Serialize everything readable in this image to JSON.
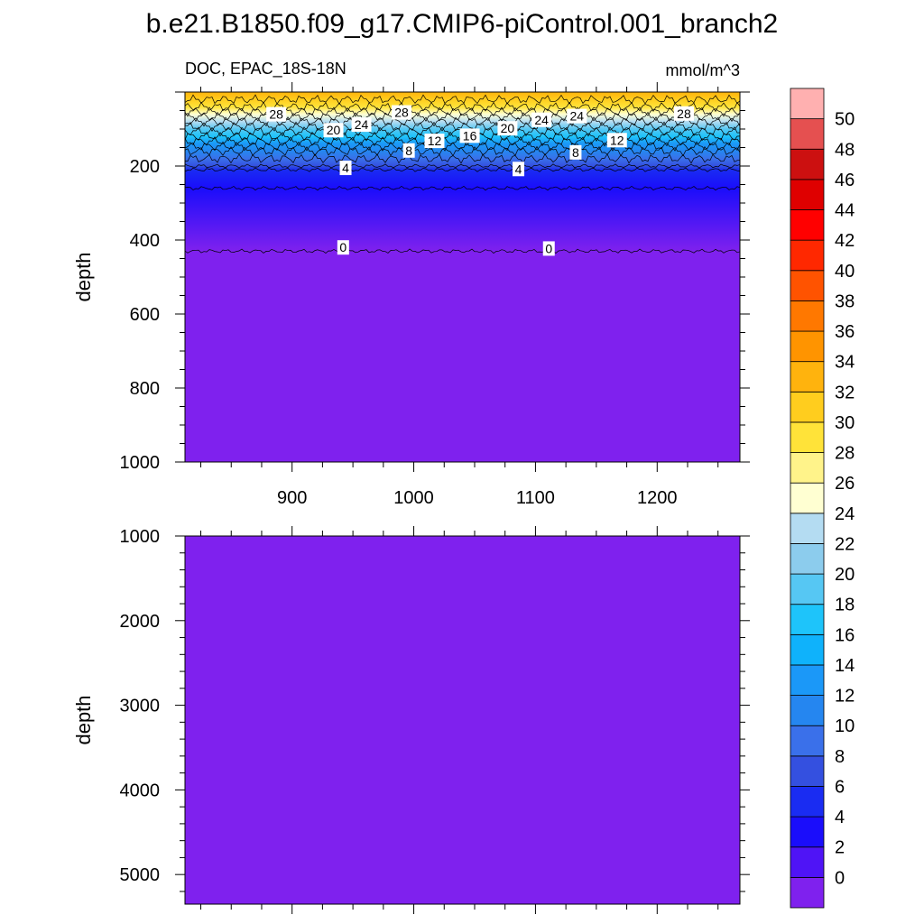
{
  "title": "b.e21.B1850.f09_g17.CMIP6-piControl.001_branch2",
  "subtitle_left": "DOC, EPAC_18S-18N",
  "subtitle_right": "mmol/m^3",
  "chart_data": [
    {
      "type": "heatmap",
      "panel": "upper",
      "variable": "DOC",
      "region": "EPAC_18S-18N",
      "units": "mmol/m^3",
      "xlabel": "",
      "ylabel": "depth",
      "xlim": [
        812,
        1268
      ],
      "ylim": [
        1000,
        0
      ],
      "x_ticks": [
        900,
        1000,
        1100,
        1200
      ],
      "y_ticks": [
        200,
        400,
        600,
        800,
        1000
      ],
      "depth_profile": [
        {
          "depth": 0,
          "value": 32
        },
        {
          "depth": 20,
          "value": 30
        },
        {
          "depth": 40,
          "value": 28
        },
        {
          "depth": 60,
          "value": 25
        },
        {
          "depth": 80,
          "value": 22
        },
        {
          "depth": 100,
          "value": 19
        },
        {
          "depth": 120,
          "value": 16
        },
        {
          "depth": 140,
          "value": 13
        },
        {
          "depth": 160,
          "value": 10
        },
        {
          "depth": 180,
          "value": 8
        },
        {
          "depth": 200,
          "value": 6
        },
        {
          "depth": 210,
          "value": 4
        },
        {
          "depth": 260,
          "value": 2
        },
        {
          "depth": 430,
          "value": 0
        },
        {
          "depth": 1000,
          "value": 0
        }
      ],
      "contour_labels": [
        {
          "x": 887,
          "depth": 60,
          "label": "28"
        },
        {
          "x": 990,
          "depth": 55,
          "label": "28"
        },
        {
          "x": 1222,
          "depth": 58,
          "label": "28"
        },
        {
          "x": 934,
          "depth": 103,
          "label": "20"
        },
        {
          "x": 1077,
          "depth": 98,
          "label": "20"
        },
        {
          "x": 957,
          "depth": 88,
          "label": "24"
        },
        {
          "x": 1105,
          "depth": 75,
          "label": "24"
        },
        {
          "x": 1134,
          "depth": 65,
          "label": "24"
        },
        {
          "x": 1017,
          "depth": 132,
          "label": "12"
        },
        {
          "x": 1167,
          "depth": 130,
          "label": "12"
        },
        {
          "x": 1046,
          "depth": 118,
          "label": "16"
        },
        {
          "x": 996,
          "depth": 158,
          "label": "8"
        },
        {
          "x": 1133,
          "depth": 163,
          "label": "8"
        },
        {
          "x": 944,
          "depth": 205,
          "label": "4"
        },
        {
          "x": 1086,
          "depth": 208,
          "label": "4"
        },
        {
          "x": 942,
          "depth": 420,
          "label": "0"
        },
        {
          "x": 1111,
          "depth": 423,
          "label": "0"
        }
      ]
    },
    {
      "type": "heatmap",
      "panel": "lower",
      "variable": "DOC",
      "units": "mmol/m^3",
      "xlabel": "",
      "ylabel": "depth",
      "xlim": [
        812,
        1268
      ],
      "ylim": [
        5350,
        1000
      ],
      "y_ticks": [
        1000,
        2000,
        3000,
        4000,
        5000
      ],
      "uniform_value": 0
    }
  ],
  "colorbar": {
    "levels": [
      "0",
      "2",
      "4",
      "6",
      "8",
      "10",
      "12",
      "14",
      "16",
      "18",
      "20",
      "22",
      "24",
      "26",
      "28",
      "30",
      "32",
      "34",
      "36",
      "38",
      "40",
      "42",
      "44",
      "46",
      "48",
      "50"
    ],
    "colors": [
      "#7f21ee",
      "#4f14f6",
      "#1a0dfb",
      "#1a2cf2",
      "#3450e0",
      "#3a70ea",
      "#2586f0",
      "#1b98f8",
      "#0fb2fb",
      "#1ec4fa",
      "#56c7f3",
      "#8ccced",
      "#b4dcf2",
      "#ffffd2",
      "#fff38a",
      "#ffe339",
      "#ffcd1e",
      "#ffb30d",
      "#ff9400",
      "#ff7800",
      "#ff5300",
      "#ff2800",
      "#ff0000",
      "#df0000",
      "#cc1010",
      "#e55050",
      "#ffb0b0"
    ]
  }
}
